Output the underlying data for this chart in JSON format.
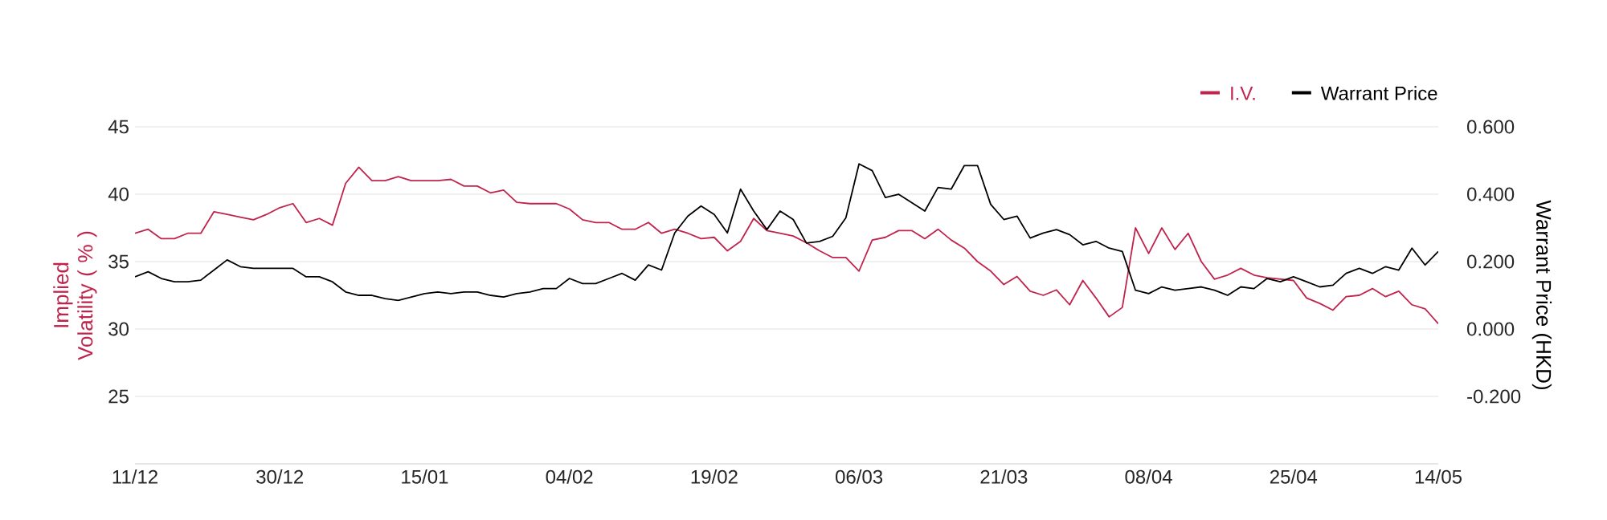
{
  "chart_data": {
    "type": "line",
    "ylabel": "Implied Volatility ( % )",
    "y2label": "Warrant Price (HKD)",
    "categories": [
      "11/12",
      null,
      null,
      null,
      null,
      null,
      null,
      null,
      null,
      null,
      null,
      "30/12",
      null,
      null,
      null,
      null,
      null,
      null,
      null,
      null,
      null,
      null,
      "15/01",
      null,
      null,
      null,
      null,
      null,
      null,
      null,
      null,
      null,
      null,
      "04/02",
      null,
      null,
      null,
      null,
      null,
      null,
      null,
      null,
      null,
      null,
      "19/02",
      null,
      null,
      null,
      null,
      null,
      null,
      null,
      null,
      null,
      null,
      "06/03",
      null,
      null,
      null,
      null,
      null,
      null,
      null,
      null,
      null,
      null,
      "21/03",
      null,
      null,
      null,
      null,
      null,
      null,
      null,
      null,
      null,
      null,
      "08/04",
      null,
      null,
      null,
      null,
      null,
      null,
      null,
      null,
      null,
      null,
      "25/04",
      null,
      null,
      null,
      null,
      null,
      null,
      null,
      null,
      null,
      null,
      "14/05"
    ],
    "series": [
      {
        "name": "I.V.",
        "color": "#c0244c",
        "axis": "y",
        "values": [
          37.1,
          37.4,
          36.7,
          36.7,
          37.1,
          37.1,
          38.7,
          38.5,
          38.3,
          38.1,
          38.5,
          39.0,
          39.3,
          37.9,
          38.2,
          37.7,
          40.8,
          42.0,
          41.0,
          41.0,
          41.3,
          41.0,
          41.0,
          41.0,
          41.1,
          40.6,
          40.6,
          40.1,
          40.3,
          39.4,
          39.3,
          39.3,
          39.3,
          38.9,
          38.1,
          37.9,
          37.9,
          37.4,
          37.4,
          37.9,
          37.1,
          37.4,
          37.1,
          36.7,
          36.8,
          35.8,
          36.5,
          38.2,
          37.3,
          37.1,
          36.9,
          36.4,
          35.8,
          35.3,
          35.3,
          34.3,
          36.6,
          36.8,
          37.3,
          37.3,
          36.7,
          37.4,
          36.6,
          36.0,
          35.0,
          34.3,
          33.3,
          33.9,
          32.8,
          32.5,
          32.9,
          31.8,
          33.6,
          32.3,
          30.9,
          31.6,
          37.5,
          35.6,
          37.5,
          35.9,
          37.1,
          35.0,
          33.7,
          34.0,
          34.5,
          34.0,
          33.8,
          33.7,
          33.6,
          32.3,
          31.9,
          31.4,
          32.4,
          32.5,
          33.0,
          32.4,
          32.8,
          31.8,
          31.5,
          30.4
        ]
      },
      {
        "name": "Warrant Price",
        "color": "#000000",
        "axis": "y2",
        "values": [
          0.155,
          0.17,
          0.15,
          0.14,
          0.14,
          0.145,
          0.175,
          0.205,
          0.185,
          0.18,
          0.18,
          0.18,
          0.18,
          0.155,
          0.155,
          0.14,
          0.11,
          0.1,
          0.1,
          0.09,
          0.085,
          0.095,
          0.105,
          0.11,
          0.105,
          0.11,
          0.11,
          0.1,
          0.095,
          0.105,
          0.11,
          0.12,
          0.12,
          0.15,
          0.135,
          0.135,
          0.15,
          0.165,
          0.145,
          0.19,
          0.175,
          0.285,
          0.335,
          0.365,
          0.34,
          0.285,
          0.415,
          0.35,
          0.295,
          0.35,
          0.325,
          0.255,
          0.26,
          0.275,
          0.33,
          0.49,
          0.47,
          0.39,
          0.4,
          0.375,
          0.35,
          0.42,
          0.415,
          0.485,
          0.485,
          0.37,
          0.325,
          0.335,
          0.27,
          0.285,
          0.295,
          0.28,
          0.25,
          0.26,
          0.24,
          0.23,
          0.115,
          0.105,
          0.125,
          0.115,
          0.12,
          0.125,
          0.115,
          0.1,
          0.125,
          0.12,
          0.15,
          0.14,
          0.155,
          0.14,
          0.125,
          0.13,
          0.165,
          0.18,
          0.165,
          0.185,
          0.175,
          0.24,
          0.19,
          0.23
        ]
      }
    ],
    "ylim": [
      20,
      45
    ],
    "yticks": [
      25,
      30,
      35,
      40,
      45
    ],
    "y2lim": [
      -0.4,
      0.6
    ],
    "y2ticks": [
      {
        "value": -0.2,
        "label": "-0.200"
      },
      {
        "value": 0,
        "label": "0.000"
      },
      {
        "value": 0.2,
        "label": "0.200"
      },
      {
        "value": 0.4,
        "label": "0.400"
      },
      {
        "value": 0.6,
        "label": "0.600"
      }
    ],
    "grid": "y",
    "legend": "top right",
    "marker": "none",
    "line_style": "solid"
  }
}
